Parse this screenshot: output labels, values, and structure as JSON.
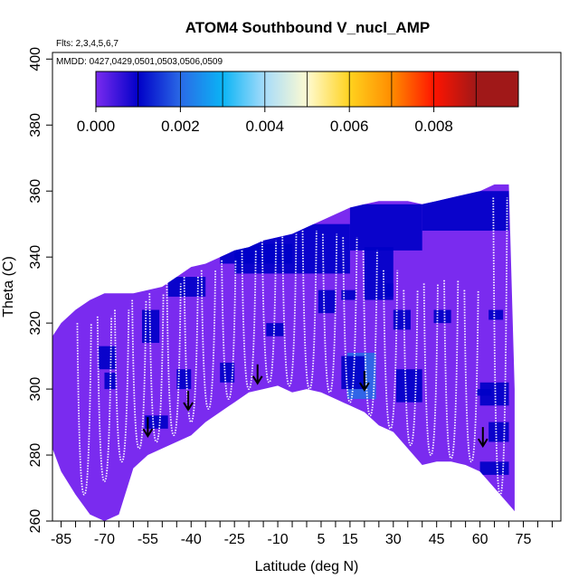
{
  "chart_data": {
    "type": "heatmap",
    "title": "ATOM4 Southbound V_nucl_AMP",
    "flights_note": "Flts: 2,3,4,5,6,7",
    "dates_note": "MMDD: 0427,0429,0501,0503,0506,0509",
    "xlabel": "Latitude (deg N)",
    "ylabel": "Theta (C)",
    "xlim": [
      -88,
      88
    ],
    "ylim": [
      260,
      402
    ],
    "x_ticks": [
      -85,
      -70,
      -55,
      -40,
      -25,
      -10,
      5,
      15,
      30,
      45,
      60,
      75
    ],
    "x_ticks_minor": [
      -80,
      -75,
      -65,
      -60,
      -50,
      -45,
      -35,
      -30,
      -20,
      -15,
      -5,
      0,
      10,
      20,
      25,
      35,
      40,
      50,
      55,
      65,
      70,
      80,
      85
    ],
    "y_ticks": [
      260,
      280,
      300,
      320,
      340,
      360,
      380,
      400
    ],
    "colorbar": {
      "min": 0.0,
      "max": 0.01,
      "tick_values": [
        0.0,
        0.002,
        0.004,
        0.006,
        0.008
      ],
      "tick_labels": [
        "0.000",
        "0.002",
        "0.004",
        "0.006",
        "0.008"
      ],
      "segment_colors": [
        "#7a2bef",
        "#0000c8",
        "#2a6ae6",
        "#0ab4f5",
        "#a8dcfa",
        "#fffbd0",
        "#ffd21e",
        "#ff8c00",
        "#ff1400",
        "#a01818"
      ]
    },
    "background_value": 0.0002,
    "coverage": {
      "lat": [
        -88,
        -85,
        -80,
        -75,
        -70,
        -65,
        -60,
        -55,
        -50,
        -45,
        -40,
        -35,
        -30,
        -25,
        -20,
        -15,
        -10,
        -5,
        0,
        5,
        10,
        15,
        20,
        25,
        30,
        35,
        40,
        45,
        50,
        55,
        60,
        65,
        70,
        72
      ],
      "theta_min": [
        282,
        275,
        268,
        262,
        260,
        262,
        276,
        280,
        282,
        284,
        286,
        290,
        293,
        296,
        299,
        300,
        301,
        299,
        300,
        299,
        297,
        295,
        293,
        289,
        287,
        282,
        277,
        278,
        278,
        277,
        275,
        270,
        265,
        263
      ],
      "theta_max": [
        316,
        320,
        324,
        327,
        329,
        329,
        329,
        330,
        331,
        334,
        337,
        338,
        340,
        342,
        343,
        345,
        346,
        347,
        349,
        351,
        353,
        355,
        356,
        357,
        357,
        357,
        356,
        357,
        358,
        359,
        360,
        362,
        362,
        300
      ]
    },
    "high_value_patches": [
      {
        "lat": [
          -25,
          15
        ],
        "theta": [
          335,
          350
        ],
        "value": 0.0011
      },
      {
        "lat": [
          15,
          40
        ],
        "theta": [
          342,
          356
        ],
        "value": 0.0012
      },
      {
        "lat": [
          40,
          70
        ],
        "theta": [
          348,
          360
        ],
        "value": 0.0012
      },
      {
        "lat": [
          -30,
          -5
        ],
        "theta": [
          338,
          344
        ],
        "value": 0.0015
      },
      {
        "lat": [
          20,
          30
        ],
        "theta": [
          327,
          343
        ],
        "value": 0.0017
      },
      {
        "lat": [
          -48,
          -35
        ],
        "theta": [
          328,
          334
        ],
        "value": 0.0013
      },
      {
        "lat": [
          -57,
          -51
        ],
        "theta": [
          314,
          324
        ],
        "value": 0.0012
      },
      {
        "lat": [
          -72,
          -66
        ],
        "theta": [
          306,
          313
        ],
        "value": 0.0012
      },
      {
        "lat": [
          -70,
          -66
        ],
        "theta": [
          300,
          305
        ],
        "value": 0.0011
      },
      {
        "lat": [
          -45,
          -40
        ],
        "theta": [
          300,
          306
        ],
        "value": 0.0014
      },
      {
        "lat": [
          -30,
          -25
        ],
        "theta": [
          302,
          308
        ],
        "value": 0.0015
      },
      {
        "lat": [
          -14,
          -8
        ],
        "theta": [
          316,
          320
        ],
        "value": 0.0013
      },
      {
        "lat": [
          4,
          10
        ],
        "theta": [
          323,
          330
        ],
        "value": 0.0011
      },
      {
        "lat": [
          12,
          17
        ],
        "theta": [
          327,
          330
        ],
        "value": 0.0018
      },
      {
        "lat": [
          27,
          30
        ],
        "theta": [
          328,
          332
        ],
        "value": 0.0016
      },
      {
        "lat": [
          14,
          24
        ],
        "theta": [
          297,
          311
        ],
        "value": 0.0024
      },
      {
        "lat": [
          12,
          20
        ],
        "theta": [
          300,
          310
        ],
        "value": 0.0014
      },
      {
        "lat": [
          31,
          40
        ],
        "theta": [
          296,
          306
        ],
        "value": 0.0016
      },
      {
        "lat": [
          30,
          36
        ],
        "theta": [
          318,
          324
        ],
        "value": 0.0013
      },
      {
        "lat": [
          44,
          50
        ],
        "theta": [
          320,
          324
        ],
        "value": 0.0012
      },
      {
        "lat": [
          59,
          64
        ],
        "theta": [
          298,
          300
        ],
        "value": 0.0014
      },
      {
        "lat": [
          60,
          70
        ],
        "theta": [
          295,
          302
        ],
        "value": 0.0011
      },
      {
        "lat": [
          63,
          70
        ],
        "theta": [
          284,
          290
        ],
        "value": 0.0012
      },
      {
        "lat": [
          60,
          70
        ],
        "theta": [
          274,
          278
        ],
        "value": 0.0014
      },
      {
        "lat": [
          -56,
          -48
        ],
        "theta": [
          288,
          292
        ],
        "value": 0.0011
      },
      {
        "lat": [
          63,
          68
        ],
        "theta": [
          321,
          324
        ],
        "value": 0.0011
      }
    ],
    "flight_profiles_ascending": [
      {
        "lat_center": -77,
        "theta_low": 268,
        "theta_high": 320
      },
      {
        "lat_center": -70,
        "theta_low": 272,
        "theta_high": 322
      },
      {
        "lat_center": -64,
        "theta_low": 278,
        "theta_high": 324
      },
      {
        "lat_center": -58,
        "theta_low": 282,
        "theta_high": 327
      },
      {
        "lat_center": -52,
        "theta_low": 284,
        "theta_high": 329
      },
      {
        "lat_center": -46,
        "theta_low": 286,
        "theta_high": 332
      },
      {
        "lat_center": -40,
        "theta_low": 290,
        "theta_high": 334
      },
      {
        "lat_center": -34,
        "theta_low": 294,
        "theta_high": 336
      },
      {
        "lat_center": -27,
        "theta_low": 297,
        "theta_high": 339
      },
      {
        "lat_center": -20,
        "theta_low": 300,
        "theta_high": 342
      },
      {
        "lat_center": -13,
        "theta_low": 302,
        "theta_high": 345
      },
      {
        "lat_center": -6,
        "theta_low": 301,
        "theta_high": 347
      },
      {
        "lat_center": 1,
        "theta_low": 300,
        "theta_high": 348
      },
      {
        "lat_center": 8,
        "theta_low": 299,
        "theta_high": 347
      },
      {
        "lat_center": 15,
        "theta_low": 296,
        "theta_high": 346
      },
      {
        "lat_center": 22,
        "theta_low": 292,
        "theta_high": 342
      },
      {
        "lat_center": 29,
        "theta_low": 288,
        "theta_high": 336
      },
      {
        "lat_center": 36,
        "theta_low": 283,
        "theta_high": 330
      },
      {
        "lat_center": 43,
        "theta_low": 280,
        "theta_high": 332
      },
      {
        "lat_center": 50,
        "theta_low": 279,
        "theta_high": 333
      },
      {
        "lat_center": 57,
        "theta_low": 278,
        "theta_high": 330
      },
      {
        "lat_center": 67,
        "theta_low": 268,
        "theta_high": 358
      }
    ],
    "tropopause_markers": [
      {
        "lat": -55,
        "theta": 286
      },
      {
        "lat": -41,
        "theta": 294
      },
      {
        "lat": -17,
        "theta": 302
      },
      {
        "lat": 20,
        "theta": 300
      },
      {
        "lat": 61,
        "theta": 283
      }
    ]
  }
}
